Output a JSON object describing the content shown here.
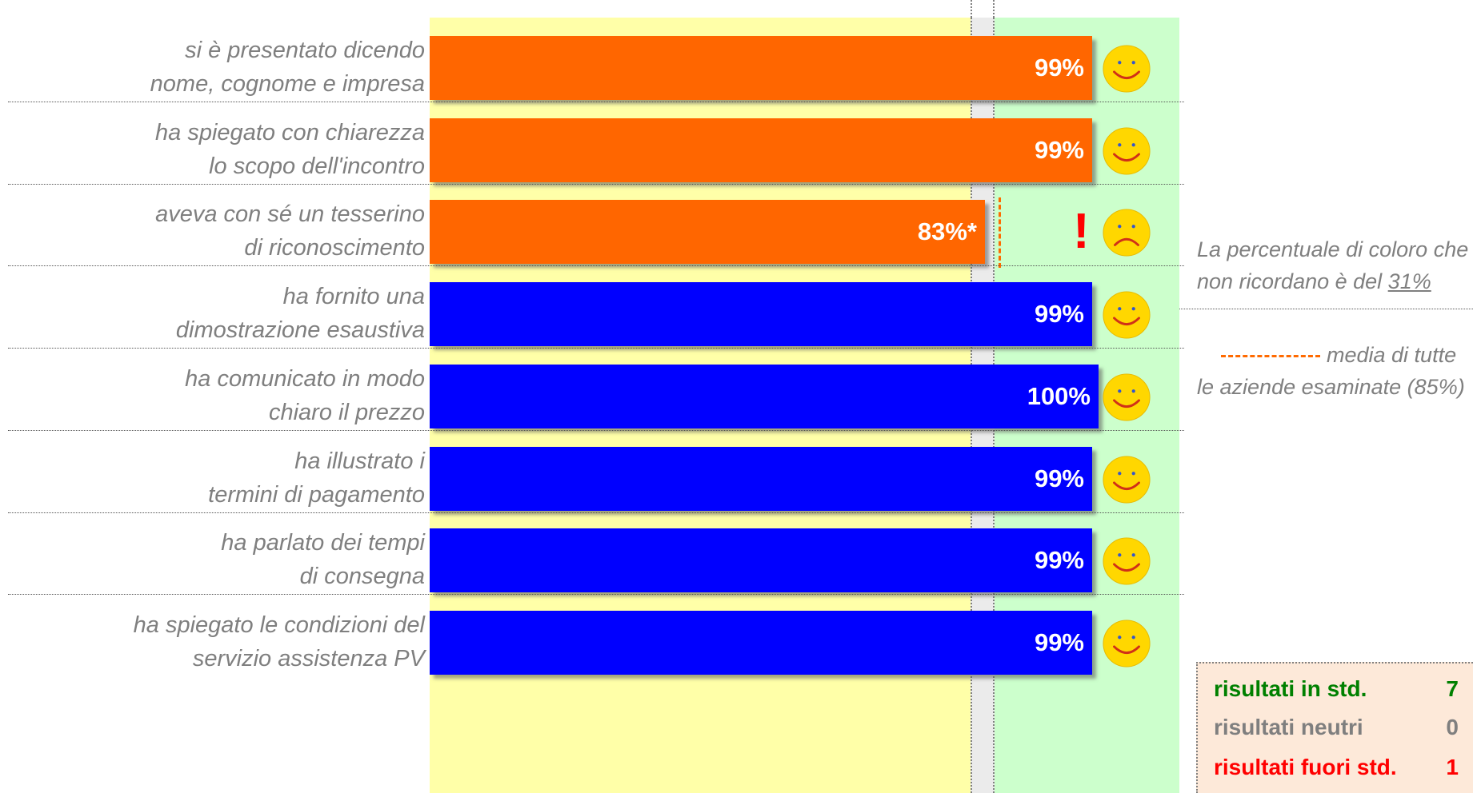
{
  "chart_data": {
    "type": "bar",
    "orientation": "horizontal",
    "categories": [
      [
        "si è presentato dicendo",
        "nome, cognome e impresa"
      ],
      [
        "ha spiegato con chiarezza",
        "lo scopo dell'incontro"
      ],
      [
        "aveva con sé un tesserino",
        "di riconoscimento"
      ],
      [
        "ha fornito una",
        "dimostrazione esaustiva"
      ],
      [
        "ha comunicato in modo",
        "chiaro il prezzo"
      ],
      [
        "ha illustrato i",
        "termini di pagamento"
      ],
      [
        "ha parlato dei tempi",
        "di consegna"
      ],
      [
        "ha spiegato le condizioni del",
        "servizio assistenza PV"
      ]
    ],
    "values": [
      99,
      99,
      83,
      99,
      100,
      99,
      99,
      99
    ],
    "value_labels": [
      "99%",
      "99%",
      "83%*",
      "99%",
      "100%",
      "99%",
      "99%",
      "99%"
    ],
    "bar_colors": [
      "#ff6600",
      "#ff6600",
      "#ff6600",
      "#0000ff",
      "#0000ff",
      "#0000ff",
      "#0000ff",
      "#0000ff"
    ],
    "status": [
      "positive",
      "positive",
      "negative",
      "positive",
      "positive",
      "positive",
      "positive",
      "positive"
    ],
    "xlim": [
      0,
      100
    ],
    "zones": [
      {
        "color": "#ffffa8",
        "from": 0,
        "to": 84
      },
      {
        "color": "#ebebeb",
        "from": 84,
        "to": 88
      },
      {
        "color": "#ccffcc",
        "from": 88,
        "to": 118
      }
    ],
    "reference": {
      "row": 2,
      "value": 85,
      "color": "#ff6a00"
    },
    "grid": false
  },
  "notes": {
    "footnote_line1": "La percentuale di coloro che",
    "footnote_line2_prefix": "non ricordano è del ",
    "footnote_line2_value": "31%",
    "legend_line1": "media di tutte",
    "legend_line2": "le aziende esaminate (85%)"
  },
  "summary": {
    "in_std": {
      "label": "risultati in std.",
      "count": "7",
      "color": "#008000"
    },
    "neutral": {
      "label": "risultati neutri",
      "count": "0",
      "color": "#7f7f7f"
    },
    "out_std": {
      "label": "risultati fuori std.",
      "count": "1",
      "color": "#ff0000"
    }
  },
  "colors": {
    "smiley_face": "#ffd700",
    "exclaim": "#ff0000"
  }
}
